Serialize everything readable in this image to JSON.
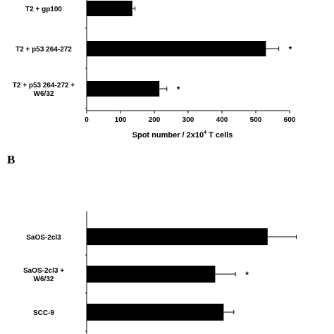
{
  "chart_data": [
    {
      "type": "bar",
      "orientation": "horizontal",
      "categories": [
        [
          "T2 + gp100"
        ],
        [
          "T2 + p53 264-272"
        ],
        [
          "T2 + p53 264-272 +",
          "W6/32"
        ]
      ],
      "values": [
        135,
        530,
        215
      ],
      "errors": [
        8,
        38,
        22
      ],
      "significance": [
        "",
        "*",
        "*"
      ],
      "xlabel_main": "Spot number / 2x10",
      "xlabel_sup": "4",
      "xlabel_end": " T cells",
      "xlim": [
        0,
        600
      ],
      "xticks": [
        0,
        100,
        200,
        300,
        400,
        500,
        600
      ],
      "bar_color": "#000000",
      "grid": false
    },
    {
      "type": "bar",
      "orientation": "horizontal",
      "panel_label": "B",
      "categories": [
        [
          "SaOS-2cl3"
        ],
        [
          "SaOS-2cl3 +",
          "W6/32"
        ],
        [
          "SCC-9"
        ]
      ],
      "values": [
        535,
        380,
        405
      ],
      "errors": [
        85,
        60,
        30
      ],
      "significance": [
        "",
        "*",
        ""
      ],
      "xlim": [
        0,
        600
      ],
      "bar_color": "#000000",
      "grid": false
    }
  ]
}
